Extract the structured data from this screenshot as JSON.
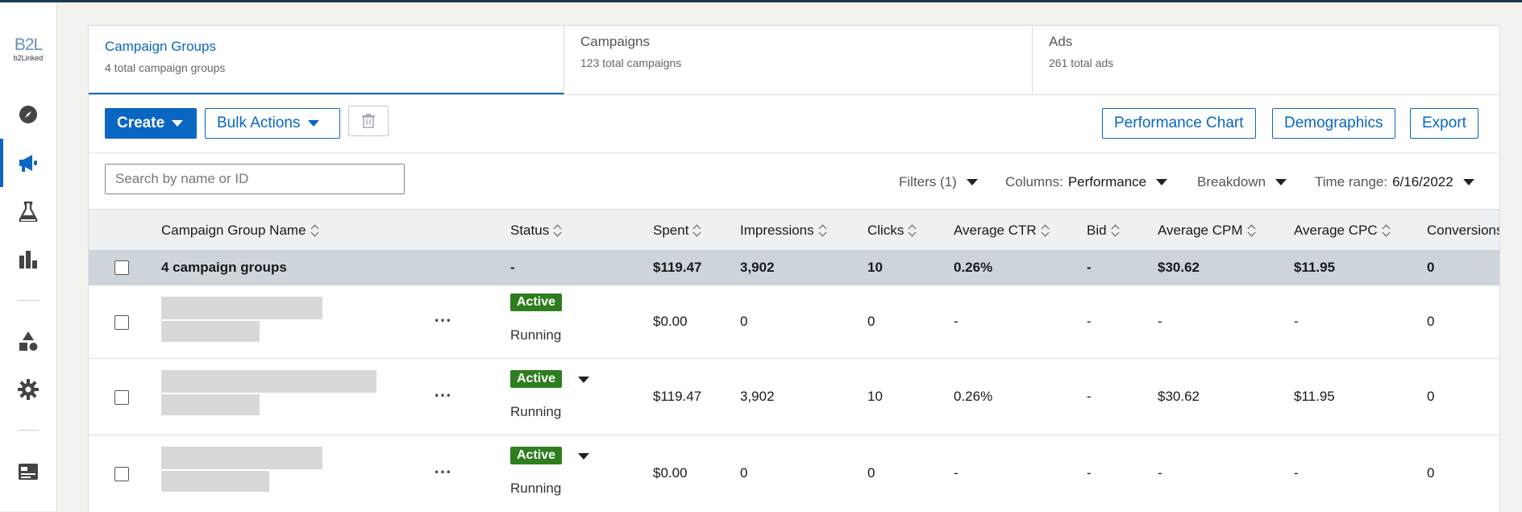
{
  "brand": {
    "mark": "B2L",
    "text": "b2Linked"
  },
  "tabs": [
    {
      "title": "Campaign Groups",
      "subtitle": "4 total campaign groups"
    },
    {
      "title": "Campaigns",
      "subtitle": "123 total campaigns"
    },
    {
      "title": "Ads",
      "subtitle": "261 total ads"
    }
  ],
  "toolbar": {
    "create": "Create",
    "bulk_actions": "Bulk Actions",
    "performance_chart": "Performance Chart",
    "demographics": "Demographics",
    "export": "Export"
  },
  "search": {
    "placeholder": "Search by name or ID"
  },
  "filters": {
    "filters_label": "Filters (1)",
    "columns_label": "Columns:",
    "columns_value": "Performance",
    "breakdown_label": "Breakdown",
    "time_range_label": "Time range:",
    "time_range_value": "6/16/2022"
  },
  "table": {
    "headers": {
      "name": "Campaign Group Name",
      "status": "Status",
      "spent": "Spent",
      "impressions": "Impressions",
      "clicks": "Clicks",
      "avg_ctr": "Average CTR",
      "bid": "Bid",
      "avg_cpm": "Average CPM",
      "avg_cpc": "Average CPC",
      "conversions": "Conversions"
    },
    "summary": {
      "name": "4 campaign groups",
      "status": "-",
      "spent": "$119.47",
      "impressions": "3,902",
      "clicks": "10",
      "avg_ctr": "0.26%",
      "bid": "-",
      "avg_cpm": "$30.62",
      "avg_cpc": "$11.95",
      "conversions": "0"
    },
    "rows": [
      {
        "badge": "Active",
        "state": "Running",
        "spent": "$0.00",
        "impressions": "0",
        "clicks": "0",
        "avg_ctr": "-",
        "bid": "-",
        "avg_cpm": "-",
        "avg_cpc": "-",
        "conversions": "0"
      },
      {
        "badge": "Active",
        "state": "Running",
        "spent": "$119.47",
        "impressions": "3,902",
        "clicks": "10",
        "avg_ctr": "0.26%",
        "bid": "-",
        "avg_cpm": "$30.62",
        "avg_cpc": "$11.95",
        "conversions": "0"
      },
      {
        "badge": "Active",
        "state": "Running",
        "spent": "$0.00",
        "impressions": "0",
        "clicks": "0",
        "avg_ctr": "-",
        "bid": "-",
        "avg_cpm": "-",
        "avg_cpc": "-",
        "conversions": "0"
      }
    ],
    "more_icon": "⋯"
  }
}
